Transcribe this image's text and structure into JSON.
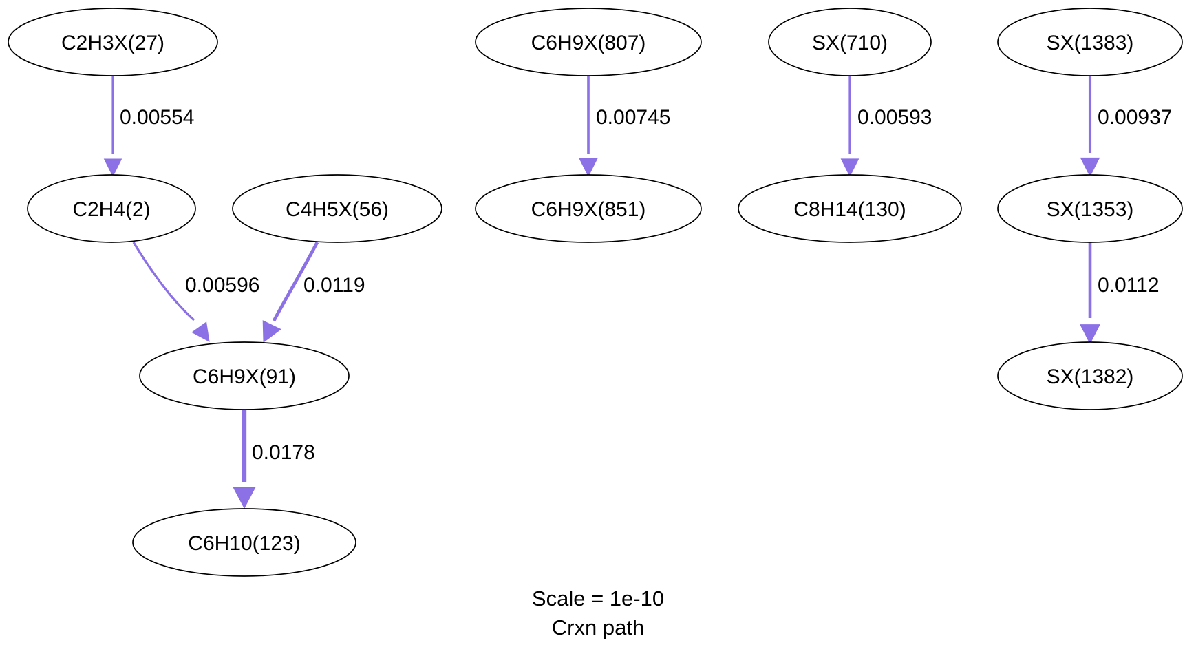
{
  "colors": {
    "edge": "#8b70e6",
    "node_stroke": "#000000",
    "background": "#ffffff"
  },
  "nodes": [
    {
      "id": "n27",
      "label": "C2H3X(27)"
    },
    {
      "id": "n2",
      "label": "C2H4(2)"
    },
    {
      "id": "n56",
      "label": "C4H5X(56)"
    },
    {
      "id": "n91",
      "label": "C6H9X(91)"
    },
    {
      "id": "n123",
      "label": "C6H10(123)"
    },
    {
      "id": "n807",
      "label": "C6H9X(807)"
    },
    {
      "id": "n851",
      "label": "C6H9X(851)"
    },
    {
      "id": "n710",
      "label": "SX(710)"
    },
    {
      "id": "n130",
      "label": "C8H14(130)"
    },
    {
      "id": "n1383",
      "label": "SX(1383)"
    },
    {
      "id": "n1353",
      "label": "SX(1353)"
    },
    {
      "id": "n1382",
      "label": "SX(1382)"
    }
  ],
  "edges": [
    {
      "from": "n27",
      "to": "n2",
      "value": "0.00554"
    },
    {
      "from": "n2",
      "to": "n91",
      "value": "0.00596"
    },
    {
      "from": "n56",
      "to": "n91",
      "value": "0.0119"
    },
    {
      "from": "n91",
      "to": "n123",
      "value": "0.0178"
    },
    {
      "from": "n807",
      "to": "n851",
      "value": "0.00745"
    },
    {
      "from": "n710",
      "to": "n130",
      "value": "0.00593"
    },
    {
      "from": "n1383",
      "to": "n1353",
      "value": "0.00937"
    },
    {
      "from": "n1353",
      "to": "n1382",
      "value": "0.0112"
    }
  ],
  "caption": {
    "line1": "Scale = 1e-10",
    "line2": "Crxn path"
  }
}
